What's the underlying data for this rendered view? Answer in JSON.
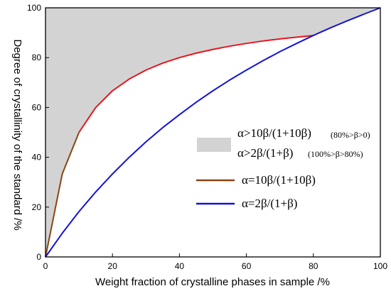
{
  "chart_data": {
    "type": "line",
    "xlabel": "Weight fraction of crystalline phases in sample /%",
    "ylabel": "Degree of crystallinity of the standard /%",
    "xlim": [
      0,
      100
    ],
    "ylim": [
      0,
      100
    ],
    "x_ticks": [
      "0",
      "20",
      "40",
      "60",
      "80",
      "100"
    ],
    "y_ticks": [
      "0",
      "20",
      "40",
      "60",
      "80",
      "100"
    ],
    "grid": false,
    "legend_position": "right-middle",
    "region": {
      "name_line1": "α>10β/(1+10β)",
      "note_line1": "(80%>β>0)",
      "name_line2": "α>2β/(1+β)",
      "note_line2": "(100%>β>80%)",
      "color": "#d3d3d3"
    },
    "series": [
      {
        "name": "α=10β/(1+10β)",
        "color": "#e8141c",
        "color_start": "#8b4513",
        "x": [
          0,
          5,
          10,
          15,
          20,
          25,
          30,
          35,
          40,
          45,
          50,
          55,
          60,
          65,
          70,
          75,
          80
        ],
        "y": [
          0,
          33.3,
          50.0,
          60.0,
          66.7,
          71.4,
          75.0,
          77.8,
          80.0,
          81.8,
          83.3,
          84.6,
          85.7,
          86.7,
          87.5,
          88.2,
          88.9
        ]
      },
      {
        "name": "α=2β/(1+β)",
        "color": "#1414d2",
        "x": [
          0,
          5,
          10,
          15,
          20,
          25,
          30,
          35,
          40,
          45,
          50,
          55,
          60,
          65,
          70,
          75,
          80,
          85,
          90,
          95,
          100
        ],
        "y": [
          0,
          9.5,
          18.2,
          26.1,
          33.3,
          40.0,
          46.2,
          51.9,
          57.1,
          62.1,
          66.7,
          71.0,
          75.0,
          78.8,
          82.4,
          85.7,
          88.9,
          91.9,
          94.7,
          97.4,
          100
        ]
      }
    ]
  }
}
